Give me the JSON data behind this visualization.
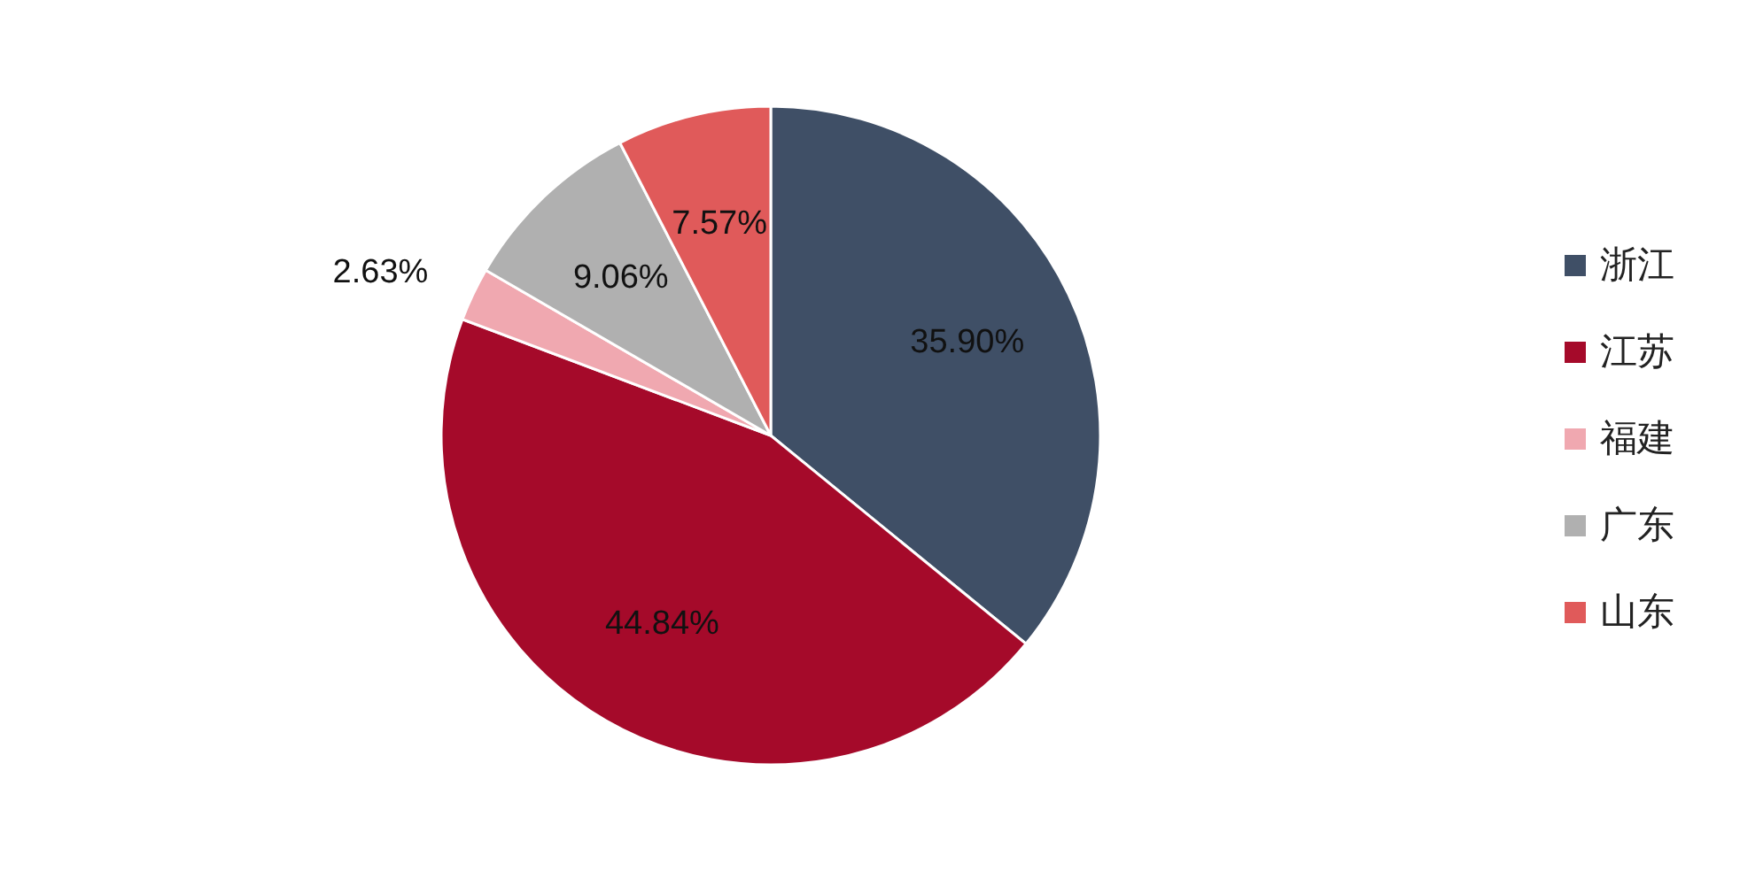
{
  "chart_data": {
    "type": "pie",
    "categories": [
      "浙江",
      "江苏",
      "福建",
      "广东",
      "山东"
    ],
    "values": [
      35.9,
      44.84,
      2.63,
      9.06,
      7.57
    ],
    "colors": [
      "#3f4f66",
      "#a50a2a",
      "#f0a8b0",
      "#b0b0b0",
      "#e05a5a"
    ],
    "value_labels": [
      "35.90%",
      "44.84%",
      "2.63%",
      "9.06%",
      "7.57%"
    ],
    "legend": "right"
  }
}
